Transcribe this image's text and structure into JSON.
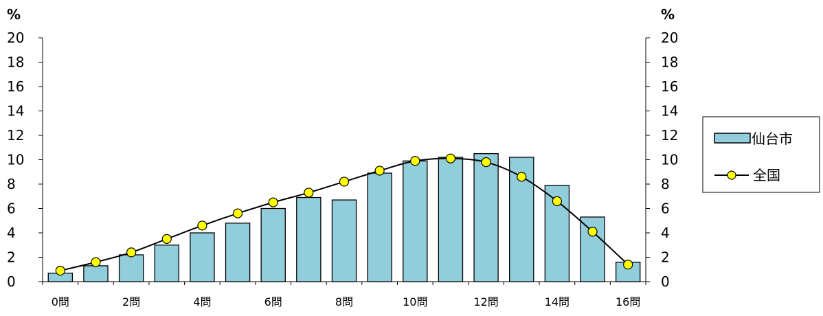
{
  "chart_data": {
    "type": "bar",
    "title": "",
    "unit_left": "%",
    "unit_right": "%",
    "x": [
      0,
      1,
      2,
      3,
      4,
      5,
      6,
      7,
      8,
      9,
      10,
      11,
      12,
      13,
      14,
      15,
      16
    ],
    "x_tick_labels": [
      "0問",
      "",
      "2問",
      "",
      "4問",
      "",
      "6問",
      "",
      "8問",
      "",
      "10問",
      "",
      "12問",
      "",
      "14問",
      "",
      "16問"
    ],
    "ylim": [
      0,
      20
    ],
    "y_ticks": [
      0,
      2,
      4,
      6,
      8,
      10,
      12,
      14,
      16,
      18,
      20
    ],
    "grid": false,
    "legend_position": "right",
    "series": [
      {
        "name": "仙台市",
        "kind": "bar",
        "color": "#92CDDC",
        "values": [
          0.7,
          1.3,
          2.2,
          3.0,
          4.0,
          4.8,
          6.0,
          6.9,
          6.7,
          8.9,
          9.9,
          10.2,
          10.5,
          10.2,
          7.9,
          5.3,
          1.6
        ]
      },
      {
        "name": "全国",
        "kind": "line",
        "color": "#000000",
        "marker_color": "#FFFF00",
        "values": [
          0.9,
          1.6,
          2.4,
          3.5,
          4.6,
          5.6,
          6.5,
          7.3,
          8.2,
          9.1,
          9.9,
          10.1,
          9.8,
          8.6,
          6.6,
          4.1,
          1.4
        ]
      }
    ]
  }
}
